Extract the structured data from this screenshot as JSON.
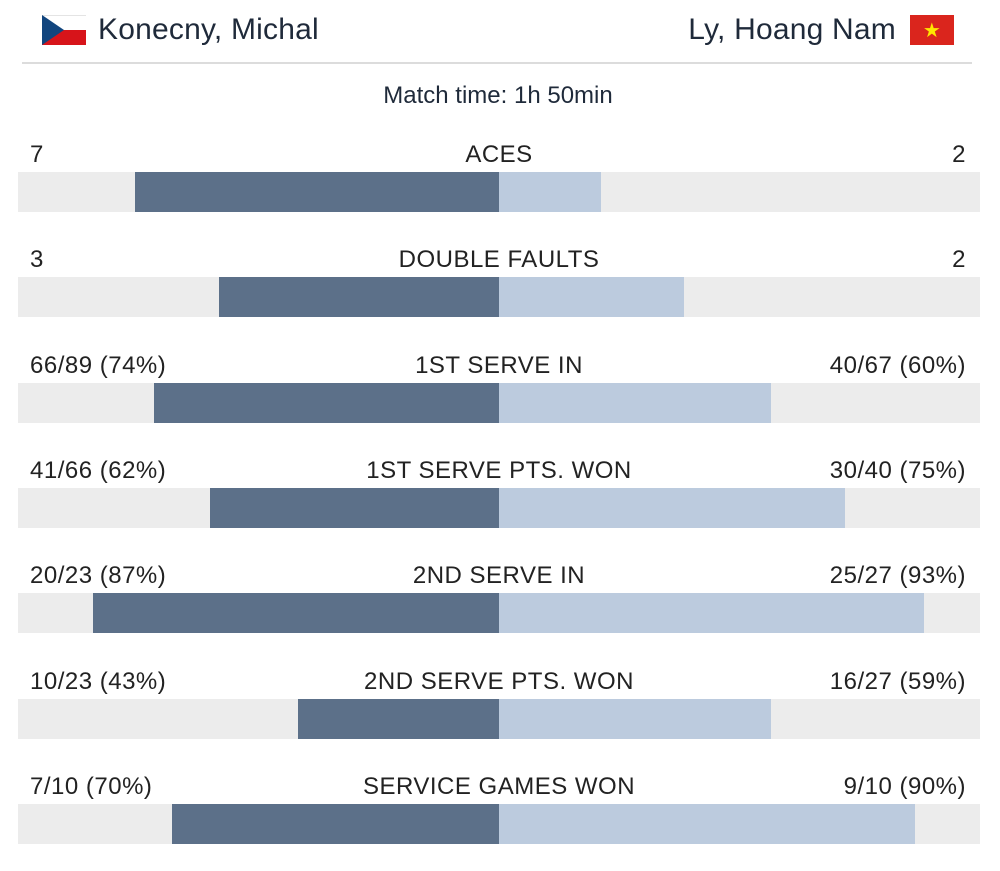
{
  "players": {
    "left": {
      "name": "Konecny, Michal",
      "flag": "czech-flag-icon"
    },
    "right": {
      "name": "Ly, Hoang Nam",
      "flag": "vietnam-flag-icon",
      "flag_star": "★"
    }
  },
  "match_time": "Match time: 1h 50min",
  "colors": {
    "left_bar": "#5c7089",
    "right_bar": "#bccbde",
    "track": "#ececec"
  },
  "stats": [
    {
      "label": "ACES",
      "left": "7",
      "right": "2",
      "left_fraction": 0.78,
      "right_fraction": 0.22
    },
    {
      "label": "DOUBLE FAULTS",
      "left": "3",
      "right": "2",
      "left_fraction": 0.6,
      "right_fraction": 0.4
    },
    {
      "label": "1ST SERVE IN",
      "left": "66/89 (74%)",
      "right": "40/67 (60%)",
      "left_fraction": 0.74,
      "right_fraction": 0.59
    },
    {
      "label": "1ST SERVE PTS. WON",
      "left": "41/66 (62%)",
      "right": "30/40 (75%)",
      "left_fraction": 0.62,
      "right_fraction": 0.75
    },
    {
      "label": "2ND SERVE IN",
      "left": "20/23 (87%)",
      "right": "25/27 (93%)",
      "left_fraction": 0.87,
      "right_fraction": 0.92
    },
    {
      "label": "2ND SERVE PTS. WON",
      "left": "10/23 (43%)",
      "right": "16/27 (59%)",
      "left_fraction": 0.43,
      "right_fraction": 0.59
    },
    {
      "label": "SERVICE GAMES WON",
      "left": "7/10 (70%)",
      "right": "9/10 (90%)",
      "left_fraction": 0.7,
      "right_fraction": 0.9
    }
  ]
}
